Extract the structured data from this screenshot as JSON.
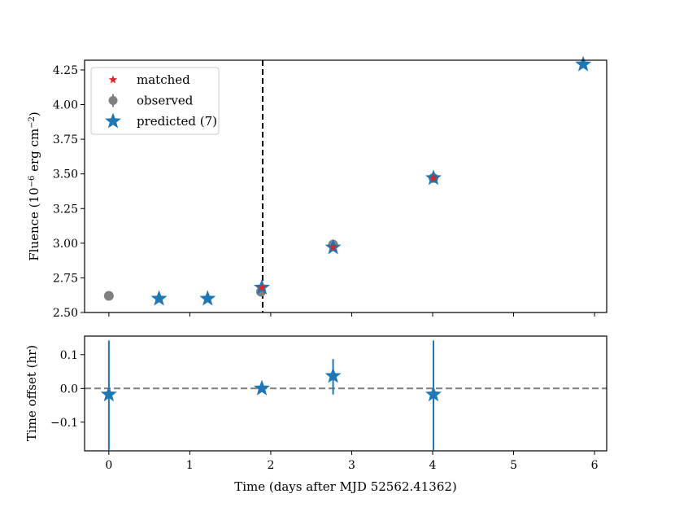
{
  "chart_data": [
    {
      "type": "scatter",
      "panel": "top",
      "ylabel_main": "Fluence (10",
      "ylabel_exp1": "−6",
      "ylabel_unit": " erg cm",
      "ylabel_exp2": "−2",
      "ylabel_close": ")",
      "xlim": [
        -0.3,
        6.15
      ],
      "ylim": [
        2.5,
        4.32
      ],
      "yticks": [
        2.5,
        2.75,
        3.0,
        3.25,
        3.5,
        3.75,
        4.0,
        4.25
      ],
      "ytick_labels": [
        "2.50",
        "2.75",
        "3.00",
        "3.25",
        "3.50",
        "3.75",
        "4.00",
        "4.25"
      ],
      "xticks": [
        0,
        1,
        2,
        3,
        4,
        5,
        6
      ],
      "vline_x": 1.9,
      "series": [
        {
          "name": "observed",
          "color": "#808080",
          "marker": "circle",
          "x": [
            0.0,
            1.88,
            2.77,
            4.01
          ],
          "y": [
            2.62,
            2.65,
            2.99,
            3.47
          ]
        },
        {
          "name": "predicted",
          "color": "#1f77b4",
          "marker": "star",
          "x": [
            0.62,
            1.22,
            1.89,
            2.77,
            4.01,
            5.86
          ],
          "y": [
            2.6,
            2.6,
            2.68,
            2.97,
            3.47,
            4.29
          ]
        },
        {
          "name": "matched",
          "color": "#d62728",
          "marker": "star-small",
          "x": [
            1.89,
            2.77,
            4.01
          ],
          "y": [
            2.68,
            2.97,
            3.47
          ]
        }
      ],
      "legend": {
        "location": "upper-left",
        "entries": [
          {
            "label": "matched",
            "color": "#d62728",
            "marker": "star-small"
          },
          {
            "label": "observed",
            "color": "#808080",
            "marker": "circle-err"
          },
          {
            "label": "predicted (7)",
            "color": "#1f77b4",
            "marker": "star"
          }
        ]
      }
    },
    {
      "type": "scatter",
      "panel": "bottom",
      "ylabel": "Time offset (hr)",
      "xlabel": "Time (days after MJD 52562.41362)",
      "xlim": [
        -0.3,
        6.15
      ],
      "ylim": [
        -0.185,
        0.155
      ],
      "yticks": [
        -0.1,
        0.0,
        0.1
      ],
      "ytick_labels": [
        "−0.1",
        "0.0",
        "0.1"
      ],
      "xticks": [
        0,
        1,
        2,
        3,
        4,
        5,
        6
      ],
      "xtick_labels": [
        "0",
        "1",
        "2",
        "3",
        "4",
        "5",
        "6"
      ],
      "hline_y": 0.0,
      "color": "#1f77b4",
      "points": [
        {
          "x": 0.0,
          "y": -0.018,
          "err_low": 0.165,
          "err_high": 0.16
        },
        {
          "x": 1.89,
          "y": 0.0,
          "err_low": 0.0,
          "err_high": 0.0
        },
        {
          "x": 2.77,
          "y": 0.037,
          "err_low": 0.055,
          "err_high": 0.05
        },
        {
          "x": 4.01,
          "y": -0.018,
          "err_low": 0.165,
          "err_high": 0.16
        }
      ]
    }
  ]
}
